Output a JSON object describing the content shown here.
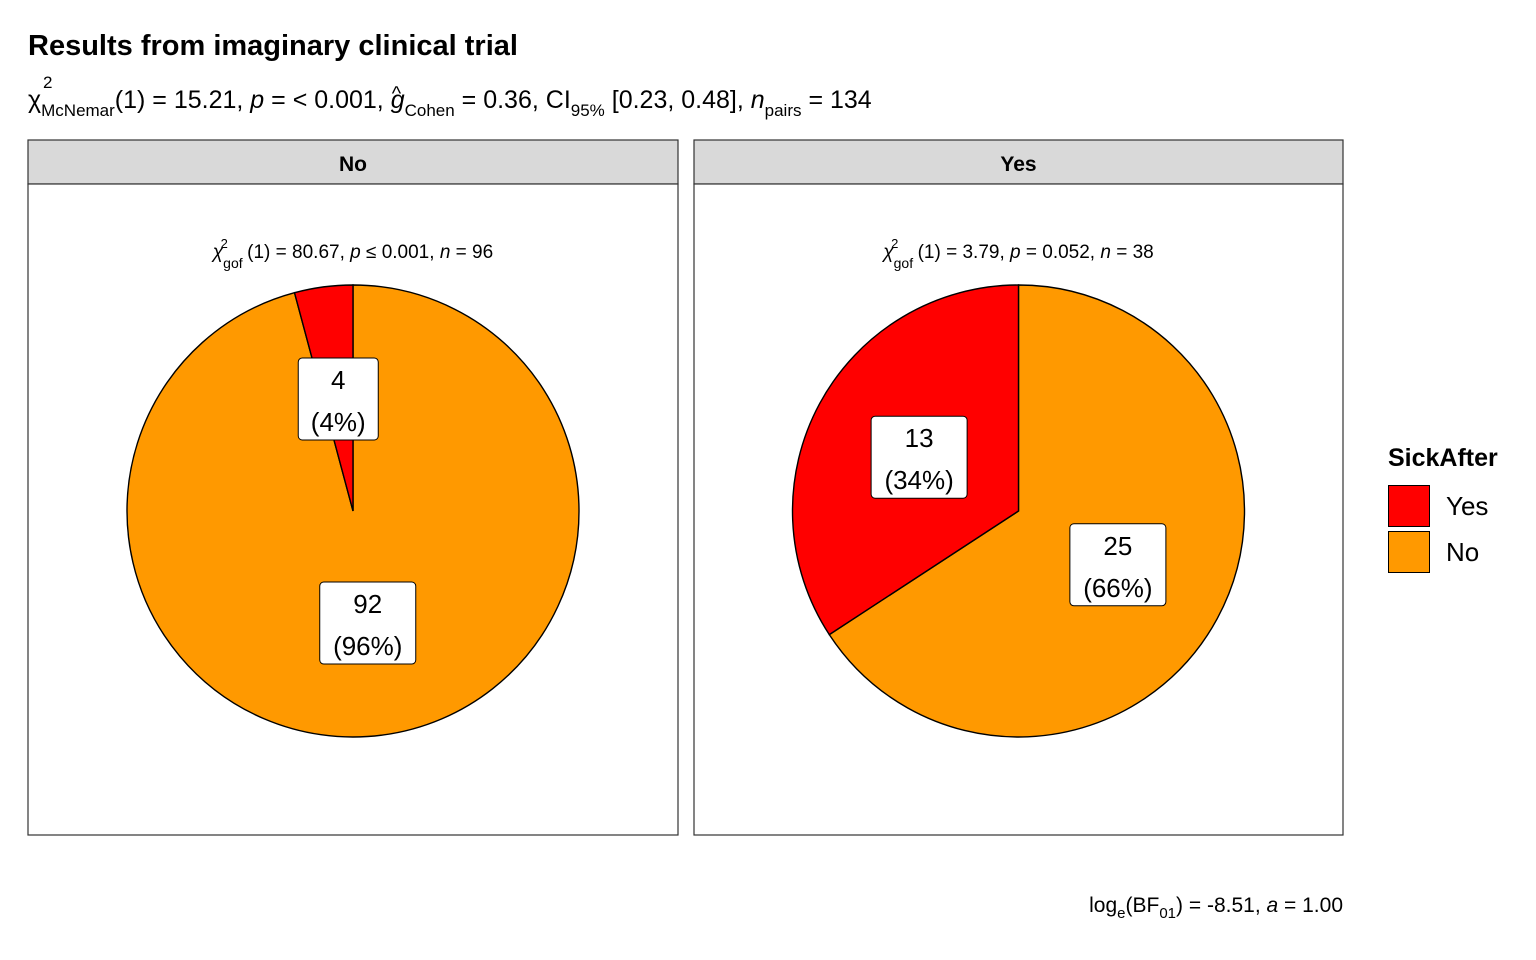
{
  "chart_data": {
    "type": "pie",
    "title": "Results from imaginary clinical trial",
    "subtitle": {
      "chi_sym": "χ",
      "chi_sup": "2",
      "chi_sub": "McNemar",
      "df": "(1) = 15.21, ",
      "p_sym": "p",
      "p_text": " = < 0.001, ",
      "g_sym": "g",
      "g_sub": "Cohen",
      "g_text": " = 0.36, CI",
      "ci_sub": "95%",
      "ci_text": " [0.23, 0.48], ",
      "n_sym": "n",
      "n_sub": "pairs",
      "n_text": " = 134"
    },
    "facets": [
      {
        "label": "No",
        "stat": {
          "sub": "gof",
          "df": "(1)",
          "chi": "= 80.67,",
          "p": "≤ 0.001,",
          "n": "= 96"
        },
        "slices": [
          {
            "name": "Yes",
            "value": 4,
            "label": "4",
            "pct": "(4%)"
          },
          {
            "name": "No",
            "value": 92,
            "label": "92",
            "pct": "(96%)"
          }
        ]
      },
      {
        "label": "Yes",
        "stat": {
          "sub": "gof",
          "df": "(1)",
          "chi": "= 3.79,",
          "p": "= 0.052,",
          "n": "= 38"
        },
        "slices": [
          {
            "name": "Yes",
            "value": 13,
            "label": "13",
            "pct": "(34%)"
          },
          {
            "name": "No",
            "value": 25,
            "label": "25",
            "pct": "(66%)"
          }
        ]
      }
    ],
    "legend": {
      "title": "SickAfter",
      "placement": "right",
      "items": [
        {
          "label": "Yes",
          "color": "#ff0000"
        },
        {
          "label": "No",
          "color": "#ff9900"
        }
      ]
    },
    "caption": {
      "pre": "log",
      "e_sub": "e",
      "bf": "(BF",
      "bf_sub": "01",
      "post": ") = -8.51, ",
      "a_sym": "a",
      "a_text": " = 1.00"
    }
  }
}
